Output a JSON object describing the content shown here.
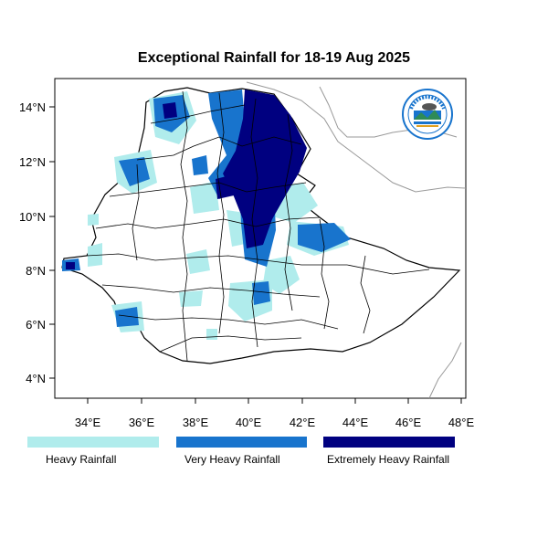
{
  "title": "Exceptional Rainfall for 18-19 Aug 2025",
  "axes": {
    "x_ticks": [
      "34°E",
      "36°E",
      "38°E",
      "40°E",
      "42°E",
      "44°E",
      "46°E",
      "48°E"
    ],
    "y_ticks": [
      "14°N",
      "12°N",
      "10°N",
      "8°N",
      "6°N",
      "4°N"
    ]
  },
  "legend": [
    {
      "label": "Heavy Rainfall",
      "color": "#b0ecec"
    },
    {
      "label": "Very Heavy Rainfall",
      "color": "#1874cd"
    },
    {
      "label": "Extremely Heavy Rainfall",
      "color": "#000080"
    }
  ],
  "logo": {
    "icon": "ethiopian-meteorology-institute-logo"
  }
}
